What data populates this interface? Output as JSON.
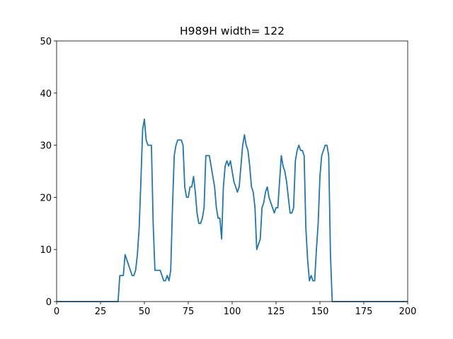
{
  "chart_data": {
    "type": "line",
    "title": "H989H width= 122",
    "color": "#1f77b4",
    "x": [
      0,
      35,
      36,
      37,
      38,
      39,
      40,
      41,
      42,
      43,
      44,
      45,
      46,
      47,
      48,
      49,
      50,
      51,
      52,
      53,
      54,
      55,
      56,
      57,
      58,
      59,
      60,
      61,
      62,
      63,
      64,
      65,
      66,
      67,
      68,
      69,
      70,
      71,
      72,
      73,
      74,
      75,
      76,
      77,
      78,
      79,
      80,
      81,
      82,
      83,
      84,
      85,
      86,
      87,
      88,
      89,
      90,
      91,
      92,
      93,
      94,
      95,
      96,
      97,
      98,
      99,
      100,
      101,
      102,
      103,
      104,
      105,
      106,
      107,
      108,
      109,
      110,
      111,
      112,
      113,
      114,
      115,
      116,
      117,
      118,
      119,
      120,
      121,
      122,
      123,
      124,
      125,
      126,
      127,
      128,
      129,
      130,
      131,
      132,
      133,
      134,
      135,
      136,
      137,
      138,
      139,
      140,
      141,
      142,
      143,
      144,
      145,
      146,
      147,
      148,
      149,
      150,
      151,
      152,
      153,
      154,
      155,
      156,
      157,
      200
    ],
    "values": [
      0,
      0,
      5,
      5,
      5,
      9,
      8,
      7,
      6,
      5,
      5,
      6,
      9,
      14,
      23,
      33,
      35,
      31,
      30,
      30,
      30,
      15,
      6,
      6,
      6,
      6,
      5,
      4,
      4,
      5,
      4,
      6,
      18,
      28,
      30,
      31,
      31,
      31,
      30,
      22,
      20,
      20,
      22,
      22,
      24,
      21,
      17,
      15,
      15,
      16,
      18,
      28,
      28,
      28,
      26,
      24,
      22,
      18,
      16,
      16,
      12,
      22,
      26,
      27,
      26,
      27,
      25,
      23,
      22,
      21,
      22,
      26,
      30,
      32,
      30,
      29,
      26,
      22,
      21,
      18,
      10,
      11,
      12,
      18,
      19,
      21,
      22,
      20,
      19,
      18,
      17,
      18,
      18,
      23,
      28,
      26,
      25,
      23,
      20,
      17,
      17,
      18,
      27,
      29,
      30,
      29,
      29,
      28,
      14,
      8,
      4,
      5,
      4,
      4,
      10,
      15,
      24,
      28,
      29,
      30,
      30,
      28,
      9,
      0,
      0
    ],
    "xlim": [
      0,
      200
    ],
    "ylim": [
      0,
      50
    ],
    "xticks": [
      0,
      25,
      50,
      75,
      100,
      125,
      150,
      175,
      200
    ],
    "yticks": [
      0,
      10,
      20,
      30,
      40,
      50
    ],
    "grid": false
  }
}
